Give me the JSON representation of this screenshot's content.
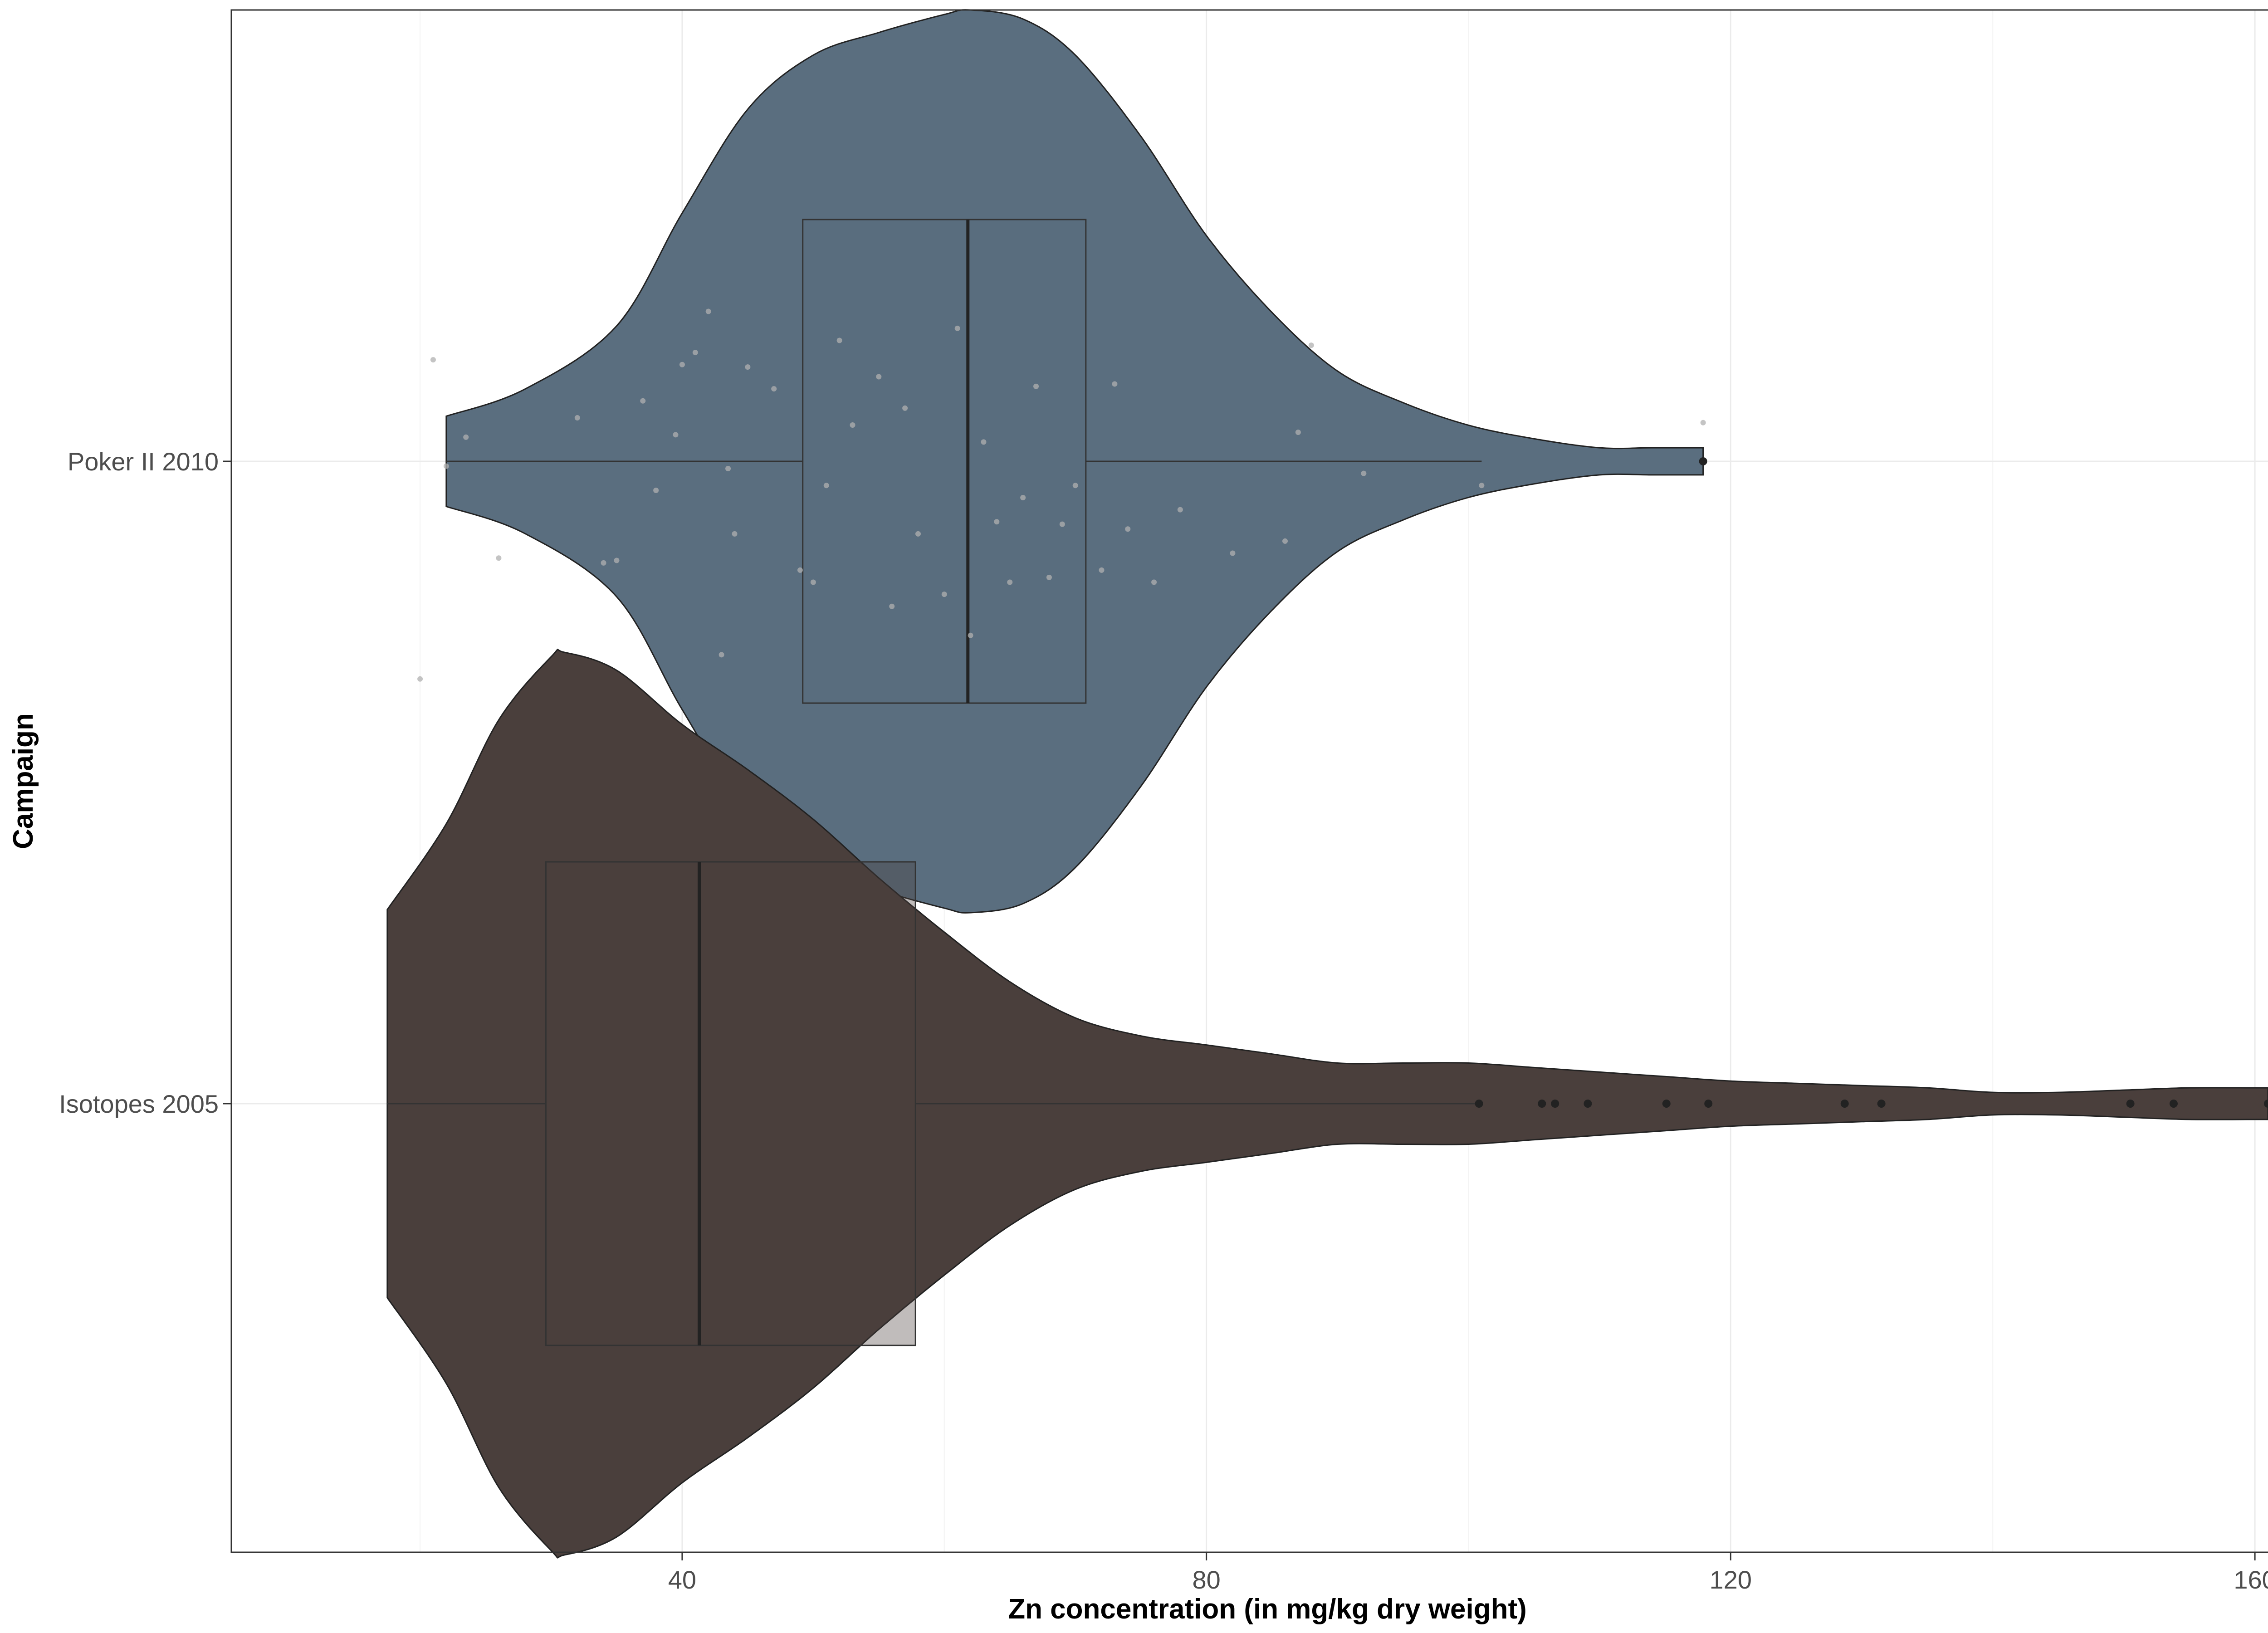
{
  "chart_data": {
    "type": "violin",
    "orientation": "horizontal",
    "xlabel": "Zn concentration (in mg/kg dry weight)",
    "ylabel": "Campaign",
    "xlim": [
      5.6,
      163.7
    ],
    "xticks": [
      40,
      80,
      120,
      160
    ],
    "categories": [
      "Isotopes 2005",
      "Poker II 2010"
    ],
    "grid": true,
    "legend": "none",
    "colors": {
      "Poker II 2010": "#5a6e7f",
      "Isotopes 2005": "#4a3f3c",
      "outline": "#222222",
      "jitter": "#b0b0b0"
    },
    "series": [
      {
        "category": "Poker II 2010",
        "box": {
          "whisker_low": 22.0,
          "q1": 49.2,
          "median": 61.8,
          "q3": 70.8,
          "whisker_high": 101.0
        },
        "outliers": [
          117.9
        ],
        "violin_range": [
          22.0,
          117.9
        ],
        "density": [
          [
            22,
            0.1
          ],
          [
            28,
            0.16
          ],
          [
            35,
            0.3
          ],
          [
            40,
            0.55
          ],
          [
            45,
            0.78
          ],
          [
            50,
            0.9
          ],
          [
            55,
            0.95
          ],
          [
            60,
            0.99
          ],
          [
            62,
            1.0
          ],
          [
            66,
            0.98
          ],
          [
            70,
            0.9
          ],
          [
            75,
            0.72
          ],
          [
            80,
            0.5
          ],
          [
            85,
            0.33
          ],
          [
            90,
            0.2
          ],
          [
            95,
            0.13
          ],
          [
            100,
            0.08
          ],
          [
            105,
            0.05
          ],
          [
            110,
            0.03
          ],
          [
            114,
            0.03
          ],
          [
            117.9,
            0.03
          ]
        ],
        "jitter_points": [
          [
            20,
            0.9
          ],
          [
            21,
            -0.42
          ],
          [
            22,
            0.02
          ],
          [
            23.5,
            -0.1
          ],
          [
            26,
            0.4
          ],
          [
            32,
            -0.18
          ],
          [
            34,
            0.42
          ],
          [
            35,
            0.41
          ],
          [
            37,
            -0.25
          ],
          [
            38,
            0.12
          ],
          [
            39.5,
            -0.11
          ],
          [
            40,
            -0.4
          ],
          [
            41,
            -0.45
          ],
          [
            42,
            -0.62
          ],
          [
            43,
            0.8
          ],
          [
            43.5,
            0.03
          ],
          [
            44,
            0.3
          ],
          [
            45,
            -0.39
          ],
          [
            47,
            -0.3
          ],
          [
            49,
            0.45
          ],
          [
            50,
            0.5
          ],
          [
            51,
            0.1
          ],
          [
            52,
            -0.5
          ],
          [
            53,
            -0.15
          ],
          [
            55,
            -0.35
          ],
          [
            56,
            0.6
          ],
          [
            57,
            -0.22
          ],
          [
            58,
            0.3
          ],
          [
            60,
            0.55
          ],
          [
            61,
            -0.55
          ],
          [
            62,
            0.72
          ],
          [
            63,
            -0.08
          ],
          [
            64,
            0.25
          ],
          [
            65,
            0.5
          ],
          [
            66,
            0.15
          ],
          [
            67,
            -0.31
          ],
          [
            68,
            0.48
          ],
          [
            69,
            0.26
          ],
          [
            70,
            0.1
          ],
          [
            72,
            0.45
          ],
          [
            73,
            -0.32
          ],
          [
            74,
            0.28
          ],
          [
            76,
            0.5
          ],
          [
            78,
            0.2
          ],
          [
            82,
            0.38
          ],
          [
            86,
            0.33
          ],
          [
            87,
            -0.12
          ],
          [
            88,
            -0.48
          ],
          [
            92,
            0.05
          ],
          [
            101,
            0.1
          ],
          [
            117.9,
            -0.16
          ]
        ]
      },
      {
        "category": "Isotopes 2005",
        "box": {
          "whisker_low": 17.5,
          "q1": 29.6,
          "median": 41.3,
          "q3": 57.8,
          "whisker_high": 100.8
        },
        "outliers": [
          100.8,
          105.6,
          106.6,
          109.1,
          115.1,
          118.3,
          128.7,
          131.5,
          150.5,
          153.8,
          161.0
        ],
        "violin_range": [
          17.5,
          161.0
        ],
        "density": [
          [
            17.5,
            0.43
          ],
          [
            22,
            0.62
          ],
          [
            26,
            0.85
          ],
          [
            30,
            0.99
          ],
          [
            31,
            1.0
          ],
          [
            35,
            0.96
          ],
          [
            40,
            0.84
          ],
          [
            45,
            0.74
          ],
          [
            50,
            0.63
          ],
          [
            55,
            0.5
          ],
          [
            60,
            0.38
          ],
          [
            65,
            0.27
          ],
          [
            70,
            0.19
          ],
          [
            75,
            0.15
          ],
          [
            80,
            0.13
          ],
          [
            85,
            0.11
          ],
          [
            90,
            0.09
          ],
          [
            95,
            0.09
          ],
          [
            100,
            0.09
          ],
          [
            105,
            0.08
          ],
          [
            110,
            0.07
          ],
          [
            115,
            0.06
          ],
          [
            120,
            0.05
          ],
          [
            125,
            0.045
          ],
          [
            130,
            0.04
          ],
          [
            135,
            0.035
          ],
          [
            140,
            0.025
          ],
          [
            145,
            0.025
          ],
          [
            150,
            0.03
          ],
          [
            155,
            0.035
          ],
          [
            160,
            0.035
          ],
          [
            161,
            0.035
          ]
        ]
      }
    ]
  }
}
